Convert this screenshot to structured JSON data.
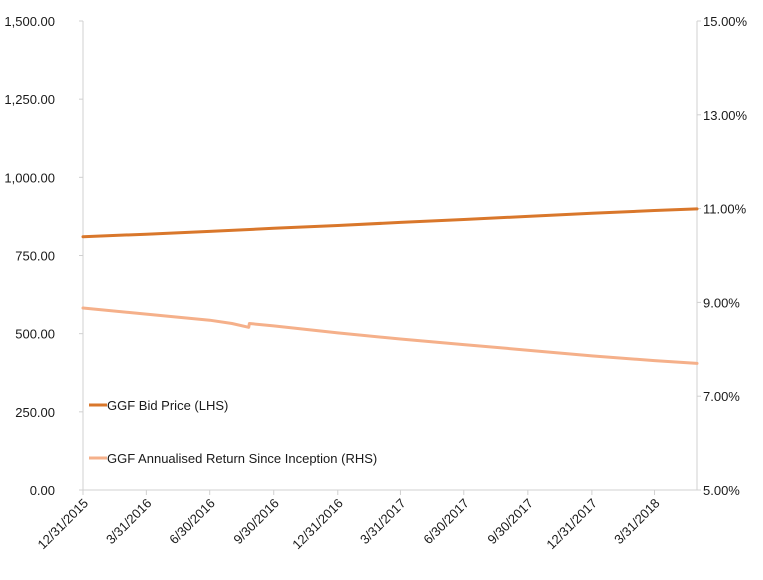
{
  "chart_data": {
    "type": "line",
    "x_tick_labels": [
      "12/31/2015",
      "3/31/2016",
      "6/30/2016",
      "9/30/2016",
      "12/31/2016",
      "3/31/2017",
      "6/30/2017",
      "9/30/2017",
      "12/31/2017",
      "3/31/2018"
    ],
    "x_range": [
      "2015-12-31",
      "2018-05-31"
    ],
    "y_left": {
      "range": [
        0,
        1500
      ],
      "tick_labels": [
        "0.00",
        "250.00",
        "500.00",
        "750.00",
        "1,000.00",
        "1,250.00",
        "1,500.00"
      ],
      "tick_values": [
        0,
        250,
        500,
        750,
        1000,
        1250,
        1500
      ]
    },
    "y_right": {
      "range": [
        5,
        15
      ],
      "tick_labels": [
        "5.00%",
        "7.00%",
        "9.00%",
        "11.00%",
        "13.00%",
        "15.00%"
      ],
      "tick_values": [
        5,
        7,
        9,
        11,
        13,
        15
      ]
    },
    "grid": false,
    "legend_position": "lower-left-inside",
    "series": [
      {
        "name": "GGF Bid Price (LHS)",
        "axis": "left",
        "color": "#D9772B",
        "points": [
          [
            "2015-12-31",
            810
          ],
          [
            "2016-03-31",
            818
          ],
          [
            "2016-06-30",
            827
          ],
          [
            "2016-09-30",
            837
          ],
          [
            "2016-12-31",
            846
          ],
          [
            "2017-03-31",
            856
          ],
          [
            "2017-06-30",
            865
          ],
          [
            "2017-09-30",
            875
          ],
          [
            "2017-12-31",
            885
          ],
          [
            "2018-03-31",
            894
          ],
          [
            "2018-05-31",
            899
          ]
        ]
      },
      {
        "name": "GGF Annualised Return Since Inception (RHS)",
        "axis": "right",
        "color": "#F5B08A",
        "points": [
          [
            "2015-12-31",
            8.88
          ],
          [
            "2016-03-31",
            8.75
          ],
          [
            "2016-06-30",
            8.62
          ],
          [
            "2016-08-01",
            8.55
          ],
          [
            "2016-08-25",
            8.47
          ],
          [
            "2016-08-26",
            8.55
          ],
          [
            "2016-09-30",
            8.5
          ],
          [
            "2016-12-31",
            8.35
          ],
          [
            "2017-03-31",
            8.22
          ],
          [
            "2017-06-30",
            8.1
          ],
          [
            "2017-09-30",
            7.98
          ],
          [
            "2017-12-31",
            7.86
          ],
          [
            "2018-03-31",
            7.76
          ],
          [
            "2018-05-31",
            7.7
          ]
        ]
      }
    ]
  }
}
